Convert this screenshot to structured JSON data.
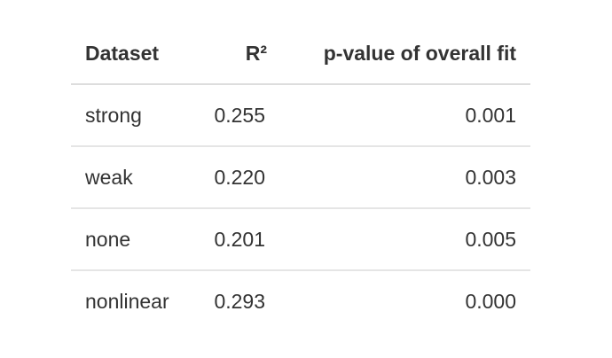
{
  "table": {
    "headers": [
      "Dataset",
      "R²",
      "p-value of overall fit"
    ],
    "rows": [
      [
        "strong",
        "0.255",
        "0.001"
      ],
      [
        "weak",
        "0.220",
        "0.003"
      ],
      [
        "none",
        "0.201",
        "0.005"
      ],
      [
        "nonlinear",
        "0.293",
        "0.000"
      ]
    ]
  }
}
